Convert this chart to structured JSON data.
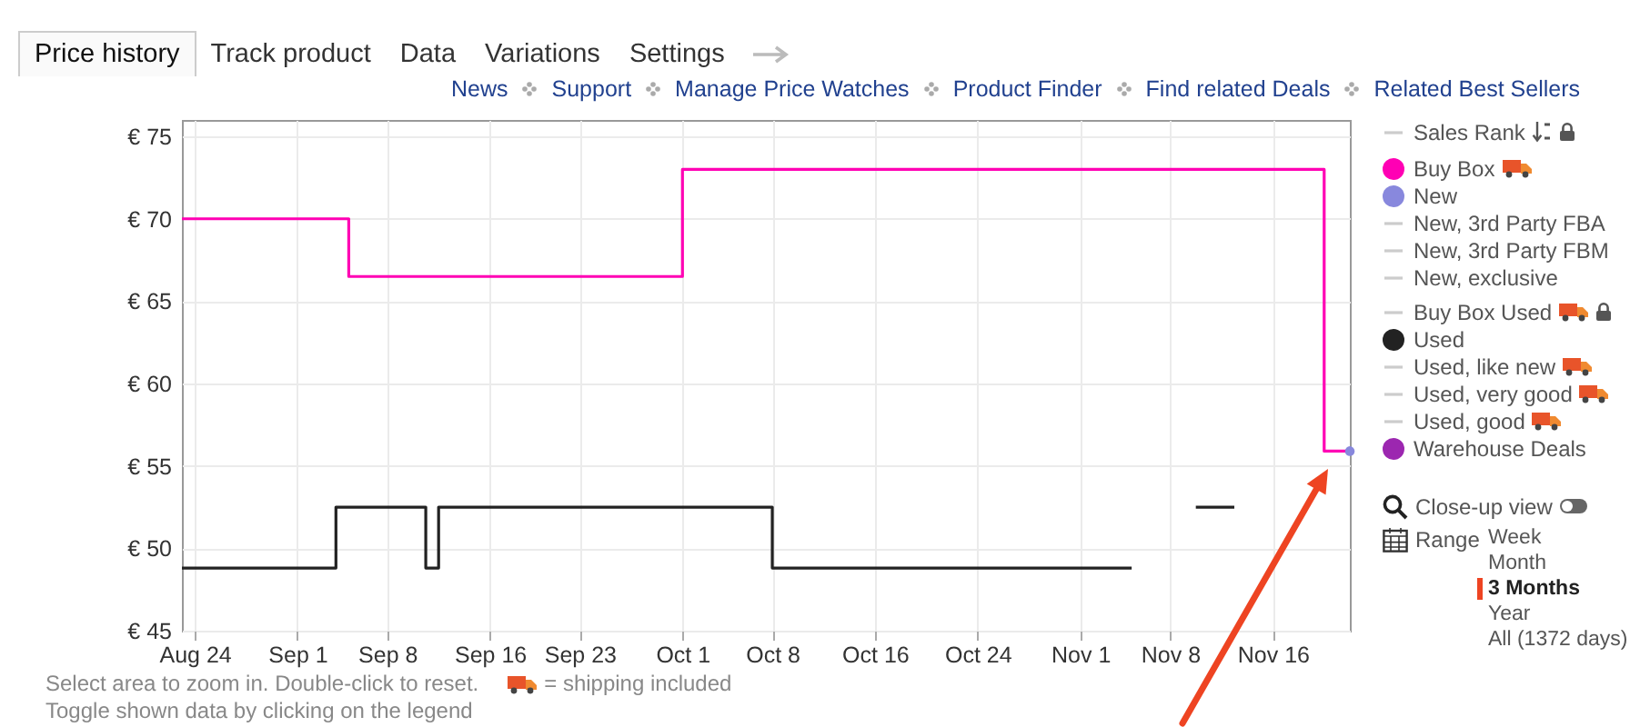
{
  "chart_data": {
    "type": "step",
    "xlim": [
      "--08-23",
      "--11-22"
    ],
    "xticks": [
      {
        "value": "--08-24",
        "label": "Aug 24"
      },
      {
        "value": "--09-01",
        "label": "Sep 1"
      },
      {
        "value": "--09-08",
        "label": "Sep 8"
      },
      {
        "value": "--09-16",
        "label": "Sep 16"
      },
      {
        "value": "--09-23",
        "label": "Sep 23"
      },
      {
        "value": "--10-01",
        "label": "Oct 1"
      },
      {
        "value": "--10-08",
        "label": "Oct 8"
      },
      {
        "value": "--10-16",
        "label": "Oct 16"
      },
      {
        "value": "--10-24",
        "label": "Oct 24"
      },
      {
        "value": "--11-01",
        "label": "Nov 1"
      },
      {
        "value": "--11-08",
        "label": "Nov 8"
      },
      {
        "value": "--11-16",
        "label": "Nov 16"
      }
    ],
    "ylim": [
      45,
      76
    ],
    "yticks": [
      {
        "value": 45,
        "label": "€ 45"
      },
      {
        "value": 50,
        "label": "€ 50"
      },
      {
        "value": 55,
        "label": "€ 55"
      },
      {
        "value": 60,
        "label": "€ 60"
      },
      {
        "value": 65,
        "label": "€ 65"
      },
      {
        "value": 70,
        "label": "€ 70"
      },
      {
        "value": 75,
        "label": "€ 75"
      }
    ],
    "grid": true,
    "legend": "right",
    "series": [
      {
        "name": "Sales Rank",
        "type": "line",
        "color": "#cccccc"
      },
      {
        "name": "Buy Box",
        "color": "#ff00b4",
        "x": [
          "--08-23",
          "--09-05",
          "--10-01",
          "--11-20",
          "--11-22"
        ],
        "values": [
          70,
          66.5,
          73,
          55.9,
          55.9
        ]
      },
      {
        "name": "New",
        "type": "scatter",
        "color": "#8888dd",
        "x": [
          "--11-22"
        ],
        "values": [
          55.9
        ]
      },
      {
        "name": "New, 3rd Party FBA",
        "type": "line",
        "color": "#cccccc"
      },
      {
        "name": "New, 3rd Party FBM",
        "type": "line",
        "color": "#cccccc"
      },
      {
        "name": "New, exclusive",
        "type": "line",
        "color": "#cccccc"
      },
      {
        "name": "Buy Box Used",
        "type": "line",
        "color": "#cccccc"
      },
      {
        "name": "Used",
        "color": "#222222",
        "x": [
          "--08-23",
          "--09-04",
          "--09-11",
          "--09-12",
          "--10-08",
          "--11-05",
          "--11-07",
          "--11-10",
          "--11-13"
        ],
        "values": [
          48.8,
          52.5,
          48.8,
          52.5,
          48.8,
          48.8,
          null,
          52.5,
          52.5
        ]
      },
      {
        "name": "Used, like new",
        "type": "line",
        "color": "#cccccc"
      },
      {
        "name": "Used, very good",
        "type": "line",
        "color": "#cccccc"
      },
      {
        "name": "Used, good",
        "type": "line",
        "color": "#cccccc"
      },
      {
        "name": "Warehouse Deals",
        "type": "scatter",
        "color": "#9c27b0"
      }
    ],
    "annotations": [
      "Price history",
      "Track product",
      "Data",
      "Variations",
      "Settings",
      "News",
      "Support",
      "Manage Price Watches",
      "Product Finder",
      "Find related Deals",
      "Related Best Sellers",
      "Close-up view",
      "Range",
      "Week",
      "Month",
      "3 Months",
      "Year",
      "All (1372 days)",
      "Select area to zoom in. Double-click to reset.",
      "= shipping included",
      "Toggle shown data by clicking on the legend"
    ]
  }
}
